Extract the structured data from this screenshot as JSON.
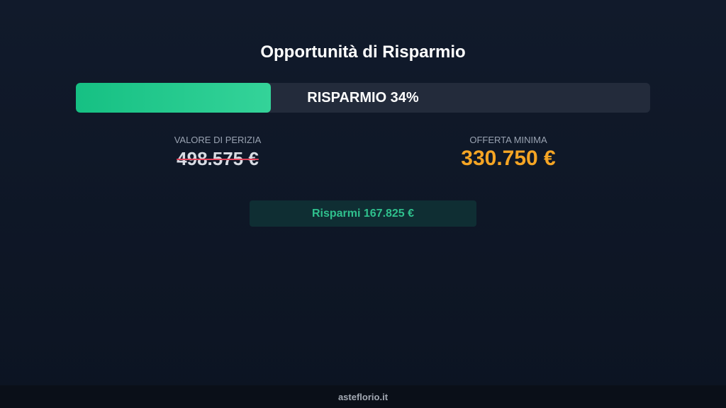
{
  "title": "Opportunità di Risparmio",
  "savings_bar": {
    "label": "RISPARMIO 34%",
    "percent": 34,
    "fill_color": "#34d399"
  },
  "appraisal": {
    "label": "VALORE DI PERIZIA",
    "value": "498.575 €"
  },
  "min_offer": {
    "label": "OFFERTA MINIMA",
    "value": "330.750 €",
    "color": "#f5a524"
  },
  "savings_badge": {
    "text": "Risparmi 167.825 €"
  },
  "footer": {
    "text": "asteflorio.it"
  }
}
